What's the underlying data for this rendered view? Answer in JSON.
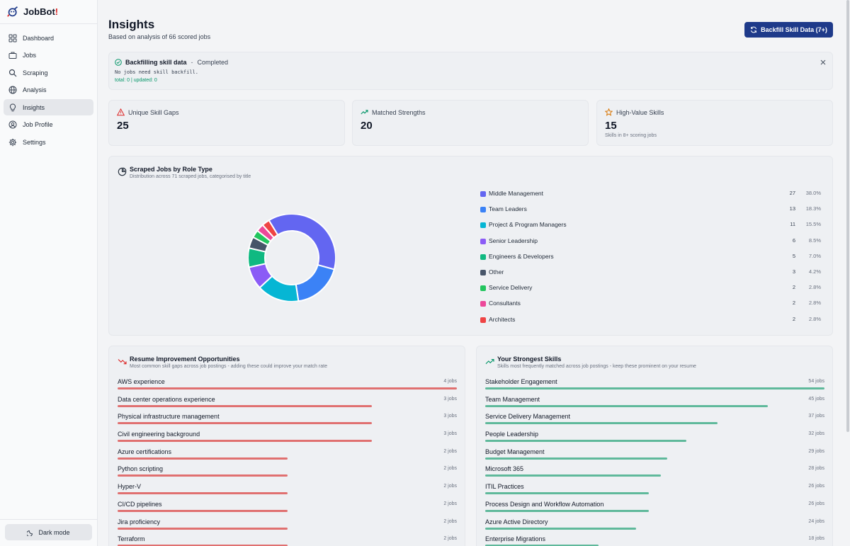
{
  "app": {
    "name_prefix": "JobBot",
    "name_accent": "!"
  },
  "sidebar": {
    "items": [
      {
        "label": "Dashboard",
        "icon": "dashboard-icon"
      },
      {
        "label": "Jobs",
        "icon": "briefcase-icon"
      },
      {
        "label": "Scraping",
        "icon": "search-icon"
      },
      {
        "label": "Analysis",
        "icon": "globe-icon"
      },
      {
        "label": "Insights",
        "icon": "lightbulb-icon",
        "active": true
      },
      {
        "label": "Job Profile",
        "icon": "user-circle-icon"
      },
      {
        "label": "Settings",
        "icon": "gear-icon"
      }
    ],
    "dark_mode_label": "Dark mode"
  },
  "header": {
    "title": "Insights",
    "subtitle": "Based on analysis of 66 scored jobs",
    "backfill_button": "Backfill Skill Data (7+)"
  },
  "alert": {
    "title": "Backfilling skill data",
    "separator": "-",
    "status": "Completed",
    "message": "No jobs need skill backfill.",
    "meta": "total: 0 | updated: 0"
  },
  "stats": [
    {
      "title": "Unique Skill Gaps",
      "value": "25",
      "note": "",
      "icon": "warning-triangle-icon",
      "color": "#dc2626"
    },
    {
      "title": "Matched Strengths",
      "value": "20",
      "note": "",
      "icon": "trending-up-icon",
      "color": "#059669"
    },
    {
      "title": "High-Value Skills",
      "value": "15",
      "note": "Skills in 8+ scoring jobs",
      "icon": "star-icon",
      "color": "#d97706"
    }
  ],
  "role_chart": {
    "title": "Scraped Jobs by Role Type",
    "subtitle": "Distribution across 71 scraped jobs, categorised by title"
  },
  "chart_data": {
    "type": "pie",
    "donut": true,
    "categories": [
      "Middle Management",
      "Team Leaders",
      "Project & Program Managers",
      "Senior Leadership",
      "Engineers & Developers",
      "Other",
      "Service Delivery",
      "Consultants",
      "Architects"
    ],
    "values": [
      27,
      13,
      11,
      6,
      5,
      3,
      2,
      2,
      2
    ],
    "percents": [
      "38.0%",
      "18.3%",
      "15.5%",
      "8.5%",
      "7.0%",
      "4.2%",
      "2.8%",
      "2.8%",
      "2.8%"
    ],
    "colors": [
      "#6366f1",
      "#3b82f6",
      "#06b6d4",
      "#8b5cf6",
      "#10b981",
      "#475569",
      "#22c55e",
      "#ec4899",
      "#ef4444"
    ],
    "legend_position": "right"
  },
  "improvements": {
    "title": "Resume Improvement Opportunities",
    "subtitle": "Most common skill gaps across job postings - adding these could improve your match rate",
    "bar_color": "#e07070",
    "max": 4,
    "items": [
      {
        "label": "AWS experience",
        "count": 4,
        "count_text": "4 jobs"
      },
      {
        "label": "Data center operations experience",
        "count": 3,
        "count_text": "3 jobs"
      },
      {
        "label": "Physical infrastructure management",
        "count": 3,
        "count_text": "3 jobs"
      },
      {
        "label": "Civil engineering background",
        "count": 3,
        "count_text": "3 jobs"
      },
      {
        "label": "Azure certifications",
        "count": 2,
        "count_text": "2 jobs"
      },
      {
        "label": "Python scripting",
        "count": 2,
        "count_text": "2 jobs"
      },
      {
        "label": "Hyper-V",
        "count": 2,
        "count_text": "2 jobs"
      },
      {
        "label": "CI/CD pipelines",
        "count": 2,
        "count_text": "2 jobs"
      },
      {
        "label": "Jira proficiency",
        "count": 2,
        "count_text": "2 jobs"
      },
      {
        "label": "Terraform",
        "count": 2,
        "count_text": "2 jobs"
      }
    ]
  },
  "strengths": {
    "title": "Your Strongest Skills",
    "subtitle": "Skills most frequently matched across job postings - keep these prominent on your resume",
    "bar_color": "#5fb99b",
    "max": 54,
    "items": [
      {
        "label": "Stakeholder Engagement",
        "count": 54,
        "count_text": "54 jobs"
      },
      {
        "label": "Team Management",
        "count": 45,
        "count_text": "45 jobs"
      },
      {
        "label": "Service Delivery Management",
        "count": 37,
        "count_text": "37 jobs"
      },
      {
        "label": "People Leadership",
        "count": 32,
        "count_text": "32 jobs"
      },
      {
        "label": "Budget Management",
        "count": 29,
        "count_text": "29 jobs"
      },
      {
        "label": "Microsoft 365",
        "count": 28,
        "count_text": "28 jobs"
      },
      {
        "label": "ITIL Practices",
        "count": 26,
        "count_text": "26 jobs"
      },
      {
        "label": "Process Design and Workflow Automation",
        "count": 26,
        "count_text": "26 jobs"
      },
      {
        "label": "Azure Active Directory",
        "count": 24,
        "count_text": "24 jobs"
      },
      {
        "label": "Enterprise Migrations",
        "count": 18,
        "count_text": "18 jobs"
      }
    ]
  }
}
